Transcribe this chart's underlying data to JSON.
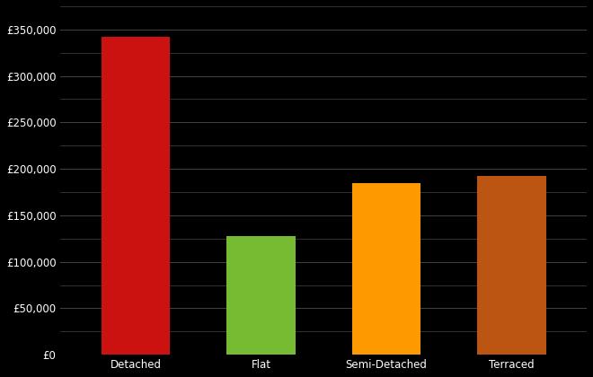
{
  "categories": [
    "Detached",
    "Flat",
    "Semi-Detached",
    "Terraced"
  ],
  "values": [
    342000,
    128000,
    185000,
    192000
  ],
  "bar_colors": [
    "#cc1111",
    "#77bb33",
    "#ff9900",
    "#bb5511"
  ],
  "background_color": "#000000",
  "text_color": "#ffffff",
  "grid_color": "#444444",
  "ylim": [
    0,
    375000
  ],
  "ytick_major_step": 50000,
  "ytick_minor_step": 25000,
  "figsize": [
    6.6,
    4.2
  ],
  "dpi": 100,
  "bar_width": 0.55
}
